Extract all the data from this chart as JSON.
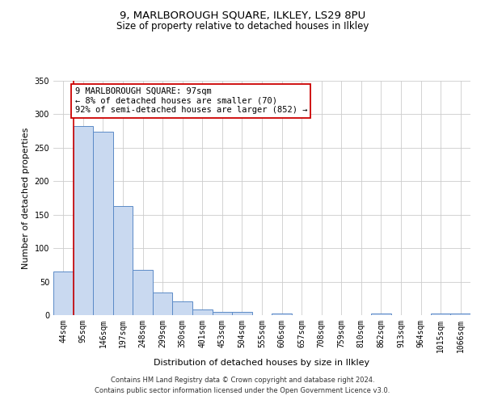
{
  "title_line1": "9, MARLBOROUGH SQUARE, ILKLEY, LS29 8PU",
  "title_line2": "Size of property relative to detached houses in Ilkley",
  "xlabel": "Distribution of detached houses by size in Ilkley",
  "ylabel": "Number of detached properties",
  "bin_labels": [
    "44sqm",
    "95sqm",
    "146sqm",
    "197sqm",
    "248sqm",
    "299sqm",
    "350sqm",
    "401sqm",
    "453sqm",
    "504sqm",
    "555sqm",
    "606sqm",
    "657sqm",
    "708sqm",
    "759sqm",
    "810sqm",
    "862sqm",
    "913sqm",
    "964sqm",
    "1015sqm",
    "1066sqm"
  ],
  "bar_heights": [
    65,
    282,
    274,
    163,
    68,
    34,
    20,
    9,
    5,
    5,
    0,
    2,
    0,
    0,
    0,
    0,
    3,
    0,
    0,
    2,
    2
  ],
  "bar_color": "#c9d9f0",
  "bar_edge_color": "#5b8ac7",
  "annotation_line1": "9 MARLBOROUGH SQUARE: 97sqm",
  "annotation_line2": "← 8% of detached houses are smaller (70)",
  "annotation_line3": "92% of semi-detached houses are larger (852) →",
  "annotation_box_color": "#ffffff",
  "annotation_box_edge_color": "#cc0000",
  "ylim": [
    0,
    350
  ],
  "yticks": [
    0,
    50,
    100,
    150,
    200,
    250,
    300,
    350
  ],
  "footnote_line1": "Contains HM Land Registry data © Crown copyright and database right 2024.",
  "footnote_line2": "Contains public sector information licensed under the Open Government Licence v3.0.",
  "title_fontsize": 9.5,
  "subtitle_fontsize": 8.5,
  "axis_label_fontsize": 8,
  "tick_fontsize": 7,
  "annotation_fontsize": 7.5,
  "footnote_fontsize": 6
}
